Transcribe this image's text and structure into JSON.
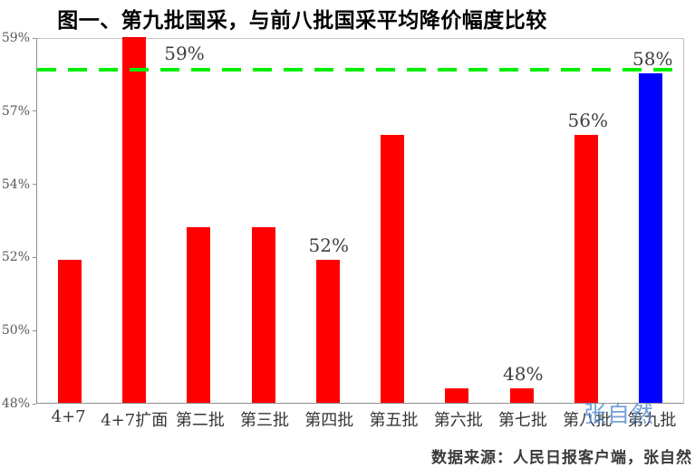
{
  "title": "图一、第九批国采，与前八批国采平均降价幅度比较",
  "source": "数据来源：人民日报客户端，张自然",
  "watermark": "张自然",
  "chart_data": {
    "type": "bar",
    "title": "图一、第九批国采，与前八批国采平均降价幅度比较",
    "categories": [
      "4+7",
      "4+7扩面",
      "第二批",
      "第三批",
      "第四批",
      "第五批",
      "第六批",
      "第七批",
      "第八批",
      "第九批"
    ],
    "values": [
      51.9,
      59,
      52.8,
      52.8,
      51.9,
      56,
      48.4,
      48.4,
      56,
      58
    ],
    "data_labels": [
      "",
      "59%",
      "",
      "",
      "52%",
      "",
      "",
      "48%",
      "56%",
      "58%"
    ],
    "y_ticks": [
      "59%",
      "57%",
      "54%",
      "52%",
      "50%",
      "48%"
    ],
    "y_tick_values": [
      59,
      57,
      54,
      52,
      50,
      48
    ],
    "ylim": [
      48,
      59
    ],
    "grid": false,
    "legend": false,
    "bar_color": "#ff0000",
    "highlight_index": 9,
    "highlight_color": "#0000ff",
    "reference_line": {
      "value": 58.15,
      "color": "#00ee00",
      "style": "dashed"
    }
  },
  "colors": {
    "bar_red": "#ff0000",
    "bar_blue": "#0000ff",
    "reference_green": "#00ee00",
    "axis_gray": "#8f8f8f",
    "tick_text": "#595959",
    "label_text": "#3f3f3f",
    "watermark_blue": "#5f93d8"
  }
}
